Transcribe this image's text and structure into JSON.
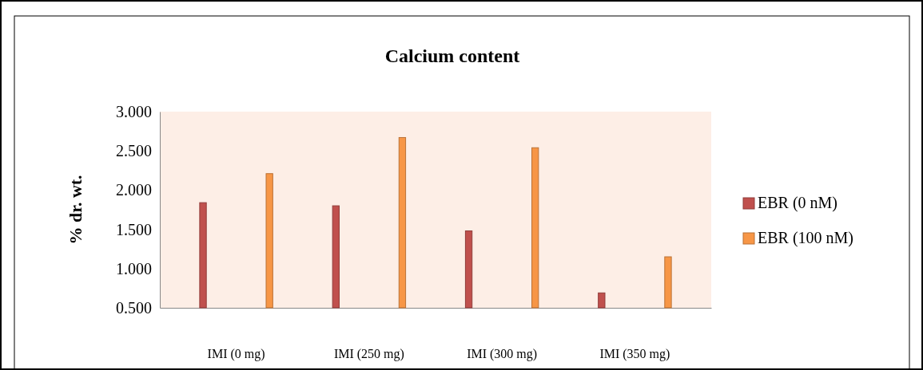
{
  "chart_data": {
    "type": "bar",
    "title": "Calcium content",
    "ylabel": "% dr. wt.",
    "categories": [
      "IMI (0 mg)",
      "IMI (250 mg)",
      "IMI (300 mg)",
      "IMI (350 mg)"
    ],
    "series": [
      {
        "name": "EBR (0 nM)",
        "color": "#c0504d",
        "values": [
          1.84,
          1.8,
          1.48,
          0.69
        ]
      },
      {
        "name": "EBR (100 nM)",
        "color": "#f79646",
        "values": [
          2.21,
          2.67,
          2.54,
          1.15
        ]
      }
    ],
    "ylim": [
      0.5,
      3
    ],
    "yticks": [
      {
        "value": 0.5,
        "label": "0.500"
      },
      {
        "value": 1,
        "label": "1.000"
      },
      {
        "value": 1.5,
        "label": "1.500"
      },
      {
        "value": 2,
        "label": "2.000"
      },
      {
        "value": 2.5,
        "label": "2.500"
      },
      {
        "value": 3,
        "label": "3.000"
      }
    ],
    "legend": "right"
  }
}
